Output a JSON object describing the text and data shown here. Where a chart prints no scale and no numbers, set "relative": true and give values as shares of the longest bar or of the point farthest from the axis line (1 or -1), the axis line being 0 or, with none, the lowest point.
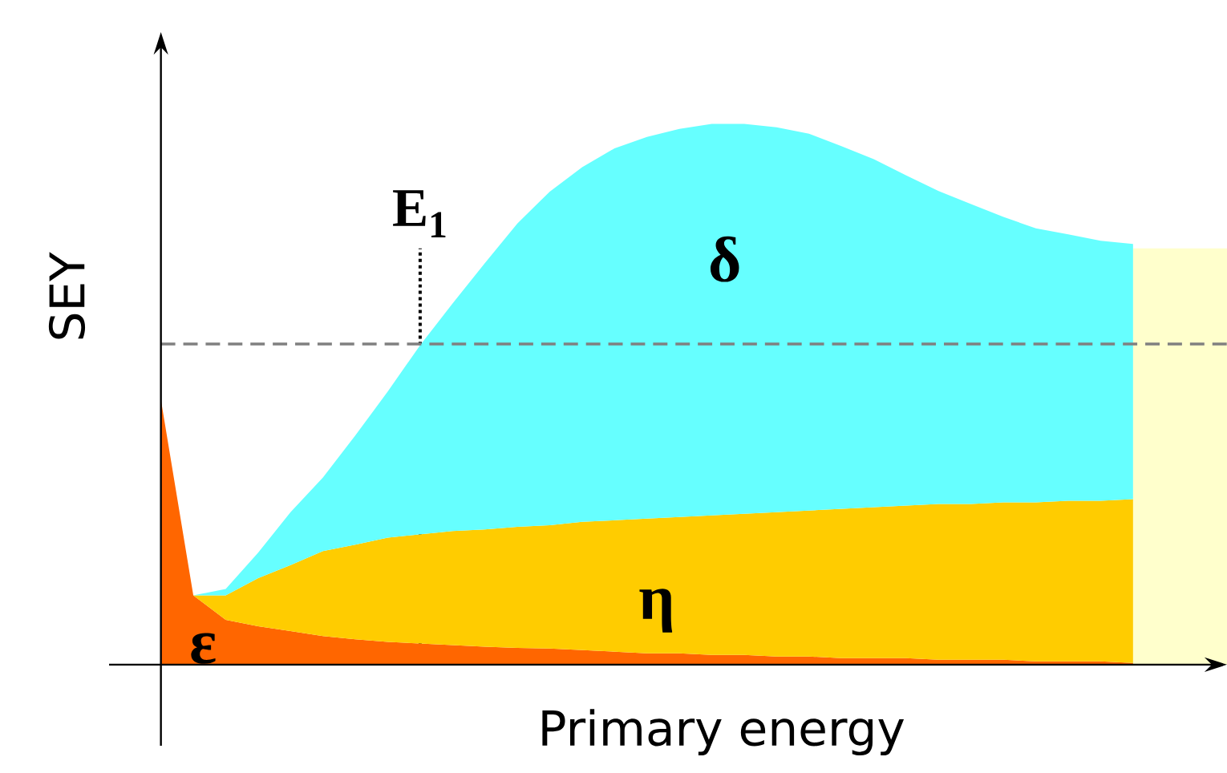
{
  "chart_data": {
    "type": "area",
    "relative": true,
    "stacked": true,
    "xlabel": "Primary energy",
    "ylabel": "SEY",
    "categories": [
      null,
      null,
      null,
      null,
      null,
      null,
      null,
      null,
      null,
      null,
      null,
      null,
      null,
      null,
      null,
      null,
      null,
      null,
      null,
      null,
      null,
      null,
      null,
      null,
      null,
      null,
      null,
      null,
      null,
      null,
      null
    ],
    "series": [
      {
        "name": "ε",
        "color": "#ff6600",
        "values": [
          0.49,
          0.128,
          0.083,
          0.071,
          0.062,
          0.053,
          0.047,
          0.042,
          0.039,
          0.036,
          0.033,
          0.031,
          0.03,
          0.027,
          0.024,
          0.021,
          0.021,
          0.018,
          0.018,
          0.015,
          0.015,
          0.012,
          0.012,
          0.012,
          0.009,
          0.009,
          0.009,
          0.006,
          0.006,
          0.006,
          0.003
        ]
      },
      {
        "name": "η",
        "color": "#ffcc00",
        "values": [
          0,
          0,
          0.045,
          0.089,
          0.122,
          0.157,
          0.175,
          0.193,
          0.202,
          0.211,
          0.217,
          0.224,
          0.228,
          0.237,
          0.243,
          0.249,
          0.252,
          0.258,
          0.261,
          0.267,
          0.27,
          0.276,
          0.279,
          0.282,
          0.288,
          0.288,
          0.291,
          0.294,
          0.297,
          0.297,
          0.303
        ]
      },
      {
        "name": "δ",
        "color": "#66ffff",
        "values": [
          0,
          0,
          0.012,
          0.047,
          0.098,
          0.136,
          0.202,
          0.27,
          0.35,
          0.421,
          0.493,
          0.561,
          0.617,
          0.656,
          0.688,
          0.706,
          0.718,
          0.724,
          0.721,
          0.712,
          0.697,
          0.671,
          0.644,
          0.611,
          0.579,
          0.555,
          0.528,
          0.507,
          0.493,
          0.481,
          0.472
        ]
      }
    ],
    "ref_lines": [
      {
        "axis": "y",
        "value": 0.593,
        "line_style": "dashed",
        "color": "#808080"
      }
    ],
    "annotations": [
      "E$_{1}$"
    ]
  }
}
